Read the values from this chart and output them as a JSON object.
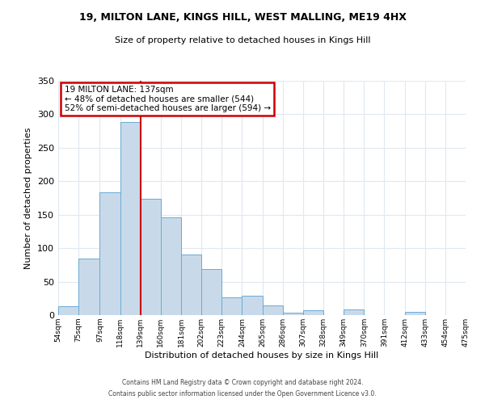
{
  "title1": "19, MILTON LANE, KINGS HILL, WEST MALLING, ME19 4HX",
  "title2": "Size of property relative to detached houses in Kings Hill",
  "xlabel": "Distribution of detached houses by size in Kings Hill",
  "ylabel": "Number of detached properties",
  "bar_color": "#c8daea",
  "bar_edge_color": "#6aaad4",
  "bin_labels": [
    "54sqm",
    "75sqm",
    "97sqm",
    "118sqm",
    "139sqm",
    "160sqm",
    "181sqm",
    "202sqm",
    "223sqm",
    "244sqm",
    "265sqm",
    "286sqm",
    "307sqm",
    "328sqm",
    "349sqm",
    "370sqm",
    "391sqm",
    "412sqm",
    "433sqm",
    "454sqm",
    "475sqm"
  ],
  "bin_edges": [
    54,
    75,
    97,
    118,
    139,
    160,
    181,
    202,
    223,
    244,
    265,
    286,
    307,
    328,
    349,
    370,
    391,
    412,
    433,
    454,
    475
  ],
  "counts": [
    13,
    85,
    184,
    288,
    174,
    146,
    91,
    69,
    26,
    29,
    14,
    4,
    7,
    0,
    9,
    0,
    0,
    5,
    0,
    0,
    0
  ],
  "vline_x": 139,
  "annotation_title": "19 MILTON LANE: 137sqm",
  "annotation_line1": "← 48% of detached houses are smaller (544)",
  "annotation_line2": "52% of semi-detached houses are larger (594) →",
  "annotation_box_color": "#ffffff",
  "annotation_box_edge": "#cc0000",
  "vline_color": "#cc0000",
  "footer1": "Contains HM Land Registry data © Crown copyright and database right 2024.",
  "footer2": "Contains public sector information licensed under the Open Government Licence v3.0.",
  "ylim": [
    0,
    350
  ],
  "yticks": [
    0,
    50,
    100,
    150,
    200,
    250,
    300,
    350
  ],
  "bg_color": "#ffffff",
  "plot_bg_color": "#ffffff",
  "grid_color": "#e0e8f0"
}
